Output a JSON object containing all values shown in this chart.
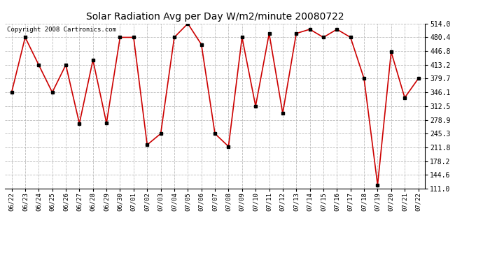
{
  "title": "Solar Radiation Avg per Day W/m2/minute 20080722",
  "copyright": "Copyright 2008 Cartronics.com",
  "dates": [
    "06/22",
    "06/23",
    "06/24",
    "06/25",
    "06/26",
    "06/27",
    "06/28",
    "06/29",
    "06/30",
    "07/01",
    "07/02",
    "07/03",
    "07/04",
    "07/05",
    "07/06",
    "07/07",
    "07/08",
    "07/09",
    "07/10",
    "07/11",
    "07/12",
    "07/13",
    "07/14",
    "07/15",
    "07/16",
    "07/17",
    "07/18",
    "07/19",
    "07/20",
    "07/21",
    "07/22"
  ],
  "values": [
    346.1,
    480.4,
    413.2,
    346.1,
    413.2,
    270.0,
    425.0,
    271.0,
    480.4,
    480.4,
    218.0,
    245.3,
    480.4,
    514.0,
    463.0,
    245.3,
    214.0,
    480.4,
    312.5,
    490.0,
    295.0,
    490.0,
    500.0,
    480.4,
    500.0,
    480.4,
    379.7,
    120.0,
    445.0,
    333.0,
    379.7
  ],
  "line_color": "#cc0000",
  "marker_color": "#000000",
  "bg_color": "#ffffff",
  "grid_color": "#bbbbbb",
  "yticks": [
    111.0,
    144.6,
    178.2,
    211.8,
    245.3,
    278.9,
    312.5,
    346.1,
    379.7,
    413.2,
    446.8,
    480.4,
    514.0
  ],
  "ylim": [
    111.0,
    514.0
  ],
  "figsize": [
    6.9,
    3.75
  ],
  "dpi": 100
}
